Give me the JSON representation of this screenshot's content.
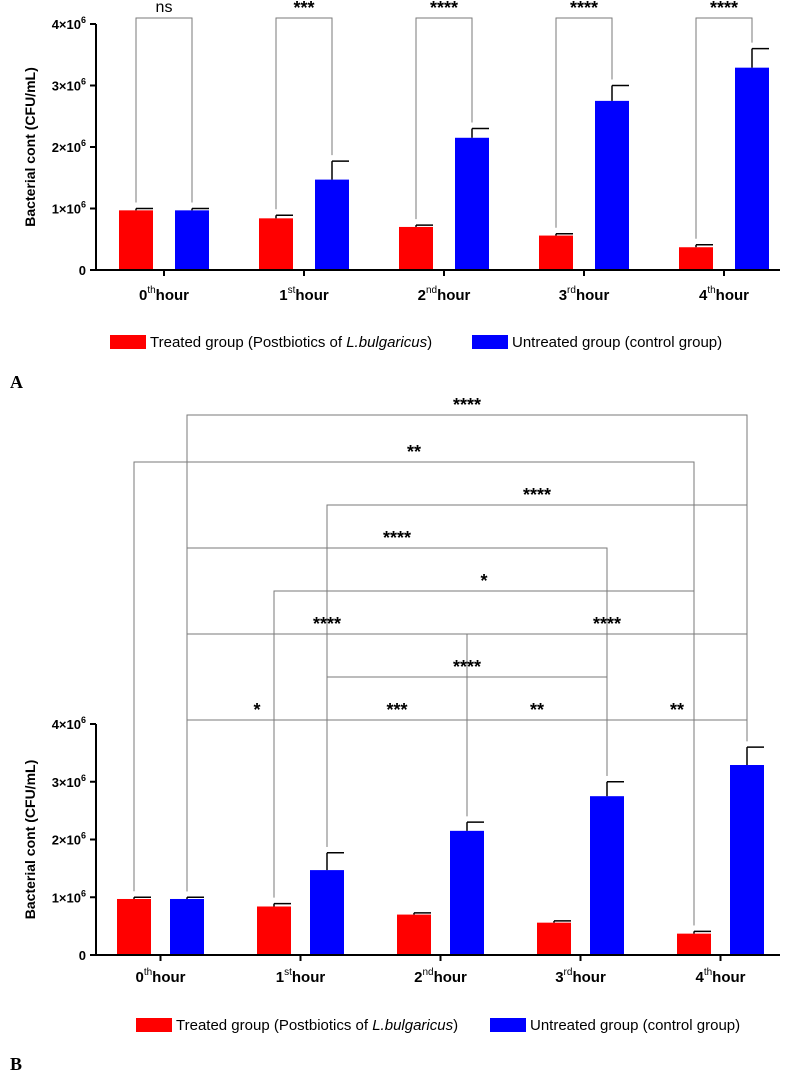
{
  "panel_labels": [
    "A",
    "B"
  ],
  "chart_data": [
    {
      "panel": "A",
      "type": "bar",
      "ylabel": "Bacterial cont (CFU/mL)",
      "ylim": [
        0,
        4000000
      ],
      "yticks": [
        {
          "value": 0,
          "base": "0",
          "exp": ""
        },
        {
          "value": 1000000,
          "base": "1×10",
          "exp": "6"
        },
        {
          "value": 2000000,
          "base": "2×10",
          "exp": "6"
        },
        {
          "value": 3000000,
          "base": "3×10",
          "exp": "6"
        },
        {
          "value": 4000000,
          "base": "4×10",
          "exp": "6"
        }
      ],
      "categories": [
        {
          "num": "0",
          "sup": "th",
          "word": "hour"
        },
        {
          "num": "1",
          "sup": "st",
          "word": "hour"
        },
        {
          "num": "2",
          "sup": "nd",
          "word": "hour"
        },
        {
          "num": "3",
          "sup": "rd",
          "word": "hour"
        },
        {
          "num": "4",
          "sup": "th",
          "word": "hour"
        }
      ],
      "series": [
        {
          "name": "Treated group (Postbiotics of L.bulgaricus)",
          "color": "#ff0000",
          "values": [
            970000,
            840000,
            700000,
            560000,
            370000
          ],
          "errors": [
            30000,
            50000,
            30000,
            30000,
            40000
          ]
        },
        {
          "name": "Untreated group (control group)",
          "color": "#0000ff",
          "values": [
            970000,
            1470000,
            2150000,
            2750000,
            3290000
          ],
          "errors": [
            30000,
            300000,
            150000,
            250000,
            310000
          ]
        }
      ],
      "legend": {
        "treated_prefix": "Treated group (Postbiotics of ",
        "treated_italic": "L.bulgaricus",
        "treated_suffix": ")",
        "untreated": "Untreated group (control group)"
      },
      "comparisons": [
        {
          "from": [
            0,
            0
          ],
          "to": [
            0,
            1
          ],
          "label": "ns"
        },
        {
          "from": [
            1,
            0
          ],
          "to": [
            1,
            1
          ],
          "label": "***"
        },
        {
          "from": [
            2,
            0
          ],
          "to": [
            2,
            1
          ],
          "label": "****"
        },
        {
          "from": [
            3,
            0
          ],
          "to": [
            3,
            1
          ],
          "label": "****"
        },
        {
          "from": [
            4,
            0
          ],
          "to": [
            4,
            1
          ],
          "label": "****"
        }
      ]
    },
    {
      "panel": "B",
      "type": "bar",
      "ylabel": "Bacterial cont (CFU/mL)",
      "ylim": [
        0,
        4000000
      ],
      "yticks": [
        {
          "value": 0,
          "base": "0",
          "exp": ""
        },
        {
          "value": 1000000,
          "base": "1×10",
          "exp": "6"
        },
        {
          "value": 2000000,
          "base": "2×10",
          "exp": "6"
        },
        {
          "value": 3000000,
          "base": "3×10",
          "exp": "6"
        },
        {
          "value": 4000000,
          "base": "4×10",
          "exp": "6"
        }
      ],
      "categories": [
        {
          "num": "0",
          "sup": "th",
          "word": "hour"
        },
        {
          "num": "1",
          "sup": "st",
          "word": "hour"
        },
        {
          "num": "2",
          "sup": "nd",
          "word": "hour"
        },
        {
          "num": "3",
          "sup": "rd",
          "word": "hour"
        },
        {
          "num": "4",
          "sup": "th",
          "word": "hour"
        }
      ],
      "series": [
        {
          "name": "Treated group (Postbiotics of L.bulgaricus)",
          "color": "#ff0000",
          "values": [
            970000,
            840000,
            700000,
            560000,
            370000
          ],
          "errors": [
            30000,
            50000,
            30000,
            30000,
            40000
          ]
        },
        {
          "name": "Untreated group (control group)",
          "color": "#0000ff",
          "values": [
            970000,
            1470000,
            2150000,
            2750000,
            3290000
          ],
          "errors": [
            30000,
            300000,
            150000,
            250000,
            310000
          ]
        }
      ],
      "legend": {
        "treated_prefix": "Treated group (Postbiotics of ",
        "treated_italic": "L.bulgaricus",
        "treated_suffix": ")",
        "untreated": "Untreated group (control group)"
      },
      "comparisons": [
        {
          "from": [
            0,
            1
          ],
          "to": [
            4,
            1
          ],
          "label": "****"
        },
        {
          "from": [
            0,
            0
          ],
          "to": [
            4,
            0
          ],
          "label": "**"
        },
        {
          "from": [
            1,
            1
          ],
          "to": [
            4,
            1
          ],
          "label": "****"
        },
        {
          "from": [
            0,
            1
          ],
          "to": [
            3,
            1
          ],
          "label": "****"
        },
        {
          "from": [
            1,
            0
          ],
          "to": [
            4,
            0
          ],
          "label": "*"
        },
        {
          "from": [
            0,
            1
          ],
          "to": [
            2,
            1
          ],
          "label": "****"
        },
        {
          "from": [
            2,
            1
          ],
          "to": [
            4,
            1
          ],
          "label": "****"
        },
        {
          "from": [
            1,
            1
          ],
          "to": [
            3,
            1
          ],
          "label": "****"
        },
        {
          "from": [
            0,
            1
          ],
          "to": [
            1,
            1
          ],
          "label": "*"
        },
        {
          "from": [
            1,
            1
          ],
          "to": [
            2,
            1
          ],
          "label": "***"
        },
        {
          "from": [
            2,
            1
          ],
          "to": [
            3,
            1
          ],
          "label": "**"
        },
        {
          "from": [
            3,
            1
          ],
          "to": [
            4,
            1
          ],
          "label": "**"
        }
      ]
    }
  ]
}
